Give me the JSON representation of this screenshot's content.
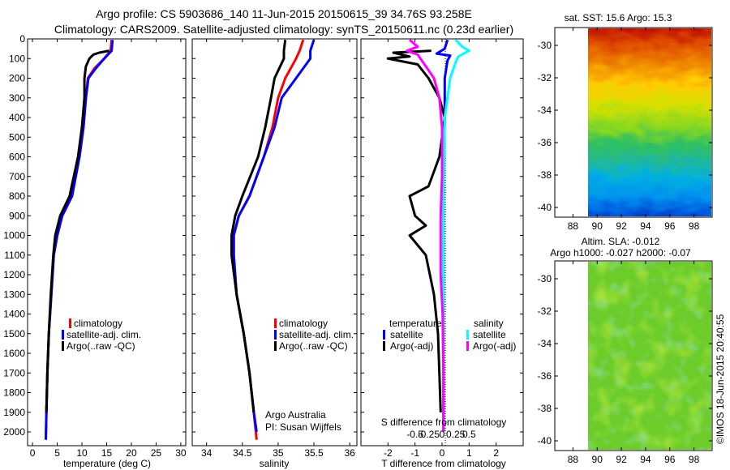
{
  "header": {
    "line1": "Argo profile: CS 5903686_140 11-Jun-2015 20150615_39 34.76S 93.258E",
    "line2": "Climatology: CARS2009. Satellite-adjusted climatology: synTS_20150611.nc (0.23d earlier)"
  },
  "footer": {
    "stamp": "©IMOS 18-Jun-2015 20:40:55"
  },
  "colors": {
    "red": "#ff0000",
    "blue": "#0000ff",
    "black": "#000000",
    "cyan": "#00ffff",
    "magenta": "#ff00ff"
  },
  "chart_data": [
    {
      "id": "temperature",
      "type": "line",
      "xlabel": "temperature (deg C)",
      "ylabel": "",
      "xlim": [
        -1,
        31
      ],
      "ylim": [
        2070,
        0
      ],
      "xticks": [
        0,
        5,
        10,
        15,
        20,
        25,
        30
      ],
      "yticks": [
        0,
        100,
        200,
        300,
        400,
        500,
        600,
        700,
        800,
        900,
        1000,
        1100,
        1200,
        1300,
        1400,
        1500,
        1600,
        1700,
        1800,
        1900,
        2000
      ],
      "legend": [
        "climatology",
        "satellite-adj. clim.",
        "Argo(..raw -QC)"
      ],
      "annotations": [],
      "series": [
        {
          "name": "climatology",
          "color": "red",
          "points": [
            [
              16,
              5
            ],
            [
              15.8,
              60
            ],
            [
              14.5,
              100
            ],
            [
              12.5,
              150
            ],
            [
              11.2,
              200
            ],
            [
              10.8,
              300
            ],
            [
              10.3,
              450
            ],
            [
              9.5,
              600
            ],
            [
              8,
              800
            ],
            [
              6,
              900
            ],
            [
              5,
              1000
            ],
            [
              4.3,
              1100
            ],
            [
              3.8,
              1300
            ],
            [
              3.3,
              1500
            ],
            [
              3,
              1700
            ],
            [
              2.8,
              1900
            ],
            [
              2.7,
              2040
            ]
          ]
        },
        {
          "name": "satellite-adj. clim.",
          "color": "blue",
          "points": [
            [
              16.2,
              5
            ],
            [
              16,
              60
            ],
            [
              14.5,
              100
            ],
            [
              12.8,
              150
            ],
            [
              11.3,
              200
            ],
            [
              10.8,
              300
            ],
            [
              10.3,
              450
            ],
            [
              9.5,
              600
            ],
            [
              8,
              800
            ],
            [
              6,
              900
            ],
            [
              5,
              1000
            ],
            [
              4.3,
              1100
            ],
            [
              3.8,
              1300
            ],
            [
              3.3,
              1500
            ],
            [
              3,
              1700
            ],
            [
              2.8,
              1900
            ],
            [
              2.7,
              2040
            ]
          ]
        },
        {
          "name": "Argo(..raw -QC)",
          "color": "black",
          "points": [
            [
              15.5,
              60
            ],
            [
              13.5,
              70
            ],
            [
              12.3,
              80
            ],
            [
              11.5,
              100
            ],
            [
              10.8,
              140
            ],
            [
              10.5,
              200
            ],
            [
              10.5,
              300
            ],
            [
              10,
              450
            ],
            [
              9.2,
              600
            ],
            [
              7.5,
              800
            ],
            [
              5.6,
              900
            ],
            [
              4.6,
              1000
            ],
            [
              4.2,
              1100
            ],
            [
              3.7,
              1300
            ],
            [
              3.3,
              1500
            ],
            [
              3,
              1700
            ],
            [
              2.8,
              1900
            ]
          ]
        }
      ]
    },
    {
      "id": "salinity",
      "type": "line",
      "xlabel": "salinity",
      "ylabel": "",
      "xlim": [
        33.8,
        36.1
      ],
      "ylim": [
        2070,
        0
      ],
      "xticks": [
        34,
        34.5,
        35,
        35.5,
        36
      ],
      "legend": [
        "climatology",
        "satellite-adj. clim.",
        "Argo(..raw -QC)"
      ],
      "annotations": [
        "Argo Australia",
        "PI: Susan Wijffels"
      ],
      "series": [
        {
          "name": "climatology",
          "color": "red",
          "points": [
            [
              35.35,
              5
            ],
            [
              35.3,
              60
            ],
            [
              35.25,
              100
            ],
            [
              35.1,
              200
            ],
            [
              35,
              300
            ],
            [
              34.92,
              450
            ],
            [
              34.8,
              600
            ],
            [
              34.6,
              800
            ],
            [
              34.45,
              900
            ],
            [
              34.38,
              1000
            ],
            [
              34.38,
              1100
            ],
            [
              34.42,
              1300
            ],
            [
              34.52,
              1500
            ],
            [
              34.6,
              1700
            ],
            [
              34.66,
              1900
            ],
            [
              34.7,
              2040
            ]
          ]
        },
        {
          "name": "satellite-adj. clim.",
          "color": "blue",
          "points": [
            [
              35.5,
              5
            ],
            [
              35.45,
              60
            ],
            [
              35.45,
              100
            ],
            [
              35.25,
              200
            ],
            [
              35.05,
              300
            ],
            [
              34.95,
              450
            ],
            [
              34.8,
              600
            ],
            [
              34.6,
              800
            ],
            [
              34.45,
              900
            ],
            [
              34.38,
              1000
            ],
            [
              34.38,
              1100
            ],
            [
              34.42,
              1300
            ],
            [
              34.52,
              1500
            ],
            [
              34.6,
              1700
            ],
            [
              34.66,
              1900
            ],
            [
              34.7,
              2000
            ]
          ]
        },
        {
          "name": "Argo(..raw -QC)",
          "color": "black",
          "points": [
            [
              35.1,
              5
            ],
            [
              35.08,
              60
            ],
            [
              35.08,
              100
            ],
            [
              34.95,
              200
            ],
            [
              34.9,
              300
            ],
            [
              34.82,
              450
            ],
            [
              34.72,
              600
            ],
            [
              34.5,
              800
            ],
            [
              34.4,
              900
            ],
            [
              34.35,
              1000
            ],
            [
              34.35,
              1100
            ],
            [
              34.42,
              1300
            ],
            [
              34.52,
              1500
            ],
            [
              34.6,
              1700
            ],
            [
              34.66,
              1900
            ]
          ]
        }
      ]
    },
    {
      "id": "differences",
      "type": "line",
      "xlabel": "T difference from climatology",
      "x2label": "S difference from climatology",
      "xlim": [
        -3,
        3
      ],
      "ylim": [
        2070,
        0
      ],
      "xticks": [
        -2,
        -1,
        0,
        1,
        2
      ],
      "xticks_top": [
        "-0.5",
        "-0.25",
        "0",
        "0.25",
        "0.5"
      ],
      "legend_titles": [
        "temperature",
        "salinity"
      ],
      "legend": [
        "satellite",
        "Argo(-adj)",
        "satellite",
        "Argo(-adj)"
      ],
      "series": [
        {
          "name": "T satellite",
          "color": "blue",
          "points": [
            [
              0.2,
              5
            ],
            [
              0.1,
              50
            ],
            [
              -0.2,
              75
            ],
            [
              0.3,
              85
            ],
            [
              0.2,
              110
            ],
            [
              0.1,
              200
            ],
            [
              0.1,
              400
            ],
            [
              0.05,
              800
            ],
            [
              0.05,
              1200
            ],
            [
              0.05,
              2000
            ]
          ]
        },
        {
          "name": "T Argo(-adj)",
          "color": "black",
          "points": [
            [
              -0.4,
              60
            ],
            [
              -1.8,
              70
            ],
            [
              -1.2,
              90
            ],
            [
              -2.0,
              100
            ],
            [
              -0.9,
              130
            ],
            [
              -0.5,
              200
            ],
            [
              -0.1,
              300
            ],
            [
              0.1,
              400
            ],
            [
              0.05,
              450
            ],
            [
              -0.1,
              600
            ],
            [
              -0.5,
              750
            ],
            [
              -1.2,
              800
            ],
            [
              -1.0,
              900
            ],
            [
              -0.6,
              950
            ],
            [
              -1.2,
              1000
            ],
            [
              -0.6,
              1100
            ],
            [
              -0.3,
              1300
            ],
            [
              -0.15,
              1500
            ],
            [
              -0.1,
              1700
            ],
            [
              -0.05,
              1900
            ]
          ]
        },
        {
          "name": "S satellite",
          "color": "cyan",
          "points": [
            [
              0.5,
              5
            ],
            [
              0.75,
              40
            ],
            [
              1.0,
              60
            ],
            [
              0.6,
              90
            ],
            [
              0.5,
              120
            ],
            [
              0.3,
              200
            ],
            [
              0.1,
              400
            ],
            [
              0.05,
              800
            ],
            [
              0.05,
              1200
            ],
            [
              0.05,
              1600
            ],
            [
              0.05,
              2000
            ]
          ]
        },
        {
          "name": "S Argo(-adj)",
          "color": "magenta",
          "points": [
            [
              -1.2,
              5
            ],
            [
              -0.9,
              40
            ],
            [
              -1.3,
              60
            ],
            [
              -0.9,
              80
            ],
            [
              -0.7,
              120
            ],
            [
              -0.3,
              200
            ],
            [
              -0.1,
              300
            ],
            [
              0,
              450
            ],
            [
              0,
              700
            ],
            [
              -0.05,
              900
            ],
            [
              -0.05,
              1200
            ],
            [
              0.02,
              1400
            ],
            [
              0.05,
              1700
            ],
            [
              0.05,
              2000
            ]
          ]
        }
      ]
    },
    {
      "id": "sst-map",
      "type": "heatmap",
      "title": "sat. SST: 15.6 Argo: 15.3",
      "xlim": [
        86.5,
        99.5
      ],
      "ylim": [
        -40.6,
        -28.9
      ],
      "xticks": [
        88,
        90,
        92,
        94,
        96,
        98
      ],
      "yticks": [
        -30,
        -32,
        -34,
        -36,
        -38,
        -40
      ],
      "data_xrange": [
        90,
        99.5
      ]
    },
    {
      "id": "sla-map",
      "type": "heatmap",
      "title_line1": "Altim. SLA: -0.012",
      "title_line2": "Argo h1000: -0.027 h2000: -0.07",
      "xlim": [
        86.5,
        99.5
      ],
      "ylim": [
        -40.6,
        -28.9
      ],
      "xticks": [
        88,
        90,
        92,
        94,
        96,
        98
      ],
      "yticks": [
        -30,
        -32,
        -34,
        -36,
        -38,
        -40
      ],
      "data_xrange": [
        90,
        99.5
      ]
    }
  ]
}
